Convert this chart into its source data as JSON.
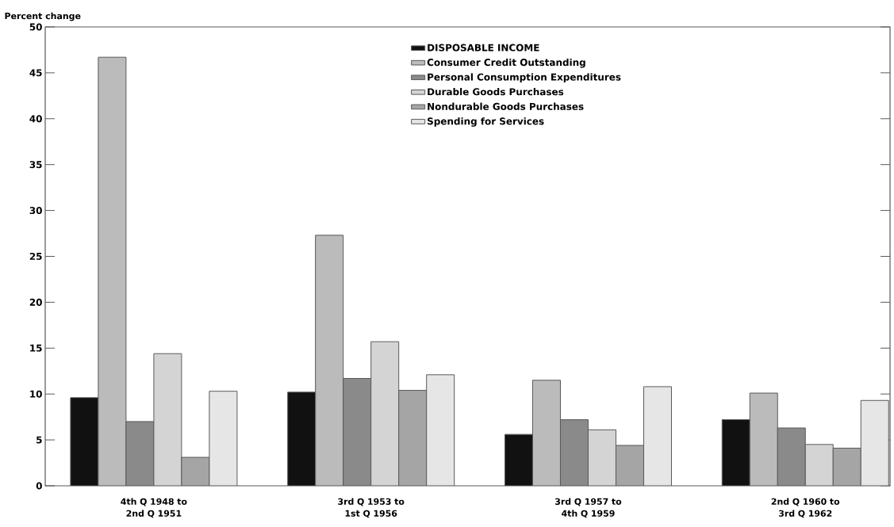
{
  "chart_data": {
    "type": "bar",
    "ylabel": "Percent change",
    "categories": [
      "4th Q 1948 to 2nd Q 1951",
      "3rd Q 1953 to 1st Q 1956",
      "3rd Q 1957 to 4th Q 1959",
      "2nd Q 1960 to 3rd Q 1962"
    ],
    "series": [
      {
        "name": "DISPOSABLE INCOME",
        "color": "#111111",
        "values": [
          9.6,
          10.2,
          5.6,
          7.2
        ]
      },
      {
        "name": "Consumer Credit Outstanding",
        "color": "#bbbbbb",
        "values": [
          46.7,
          27.3,
          11.5,
          10.1
        ]
      },
      {
        "name": "Personal Consumption Expenditures",
        "color": "#8a8a8a",
        "values": [
          7.0,
          11.7,
          7.2,
          6.3
        ]
      },
      {
        "name": "Durable Goods Purchases",
        "color": "#d4d4d4",
        "values": [
          14.4,
          15.7,
          6.1,
          4.5
        ]
      },
      {
        "name": "Nondurable Goods Purchases",
        "color": "#a5a5a5",
        "values": [
          3.1,
          10.4,
          4.4,
          4.1
        ]
      },
      {
        "name": "Spending for Services",
        "color": "#e6e6e6",
        "values": [
          10.3,
          12.1,
          10.8,
          9.3
        ]
      }
    ],
    "ylim": [
      0,
      50
    ],
    "yticks": [
      0,
      5,
      10,
      15,
      20,
      25,
      30,
      35,
      40,
      45,
      50
    ],
    "grid": false,
    "legend": "top right"
  }
}
